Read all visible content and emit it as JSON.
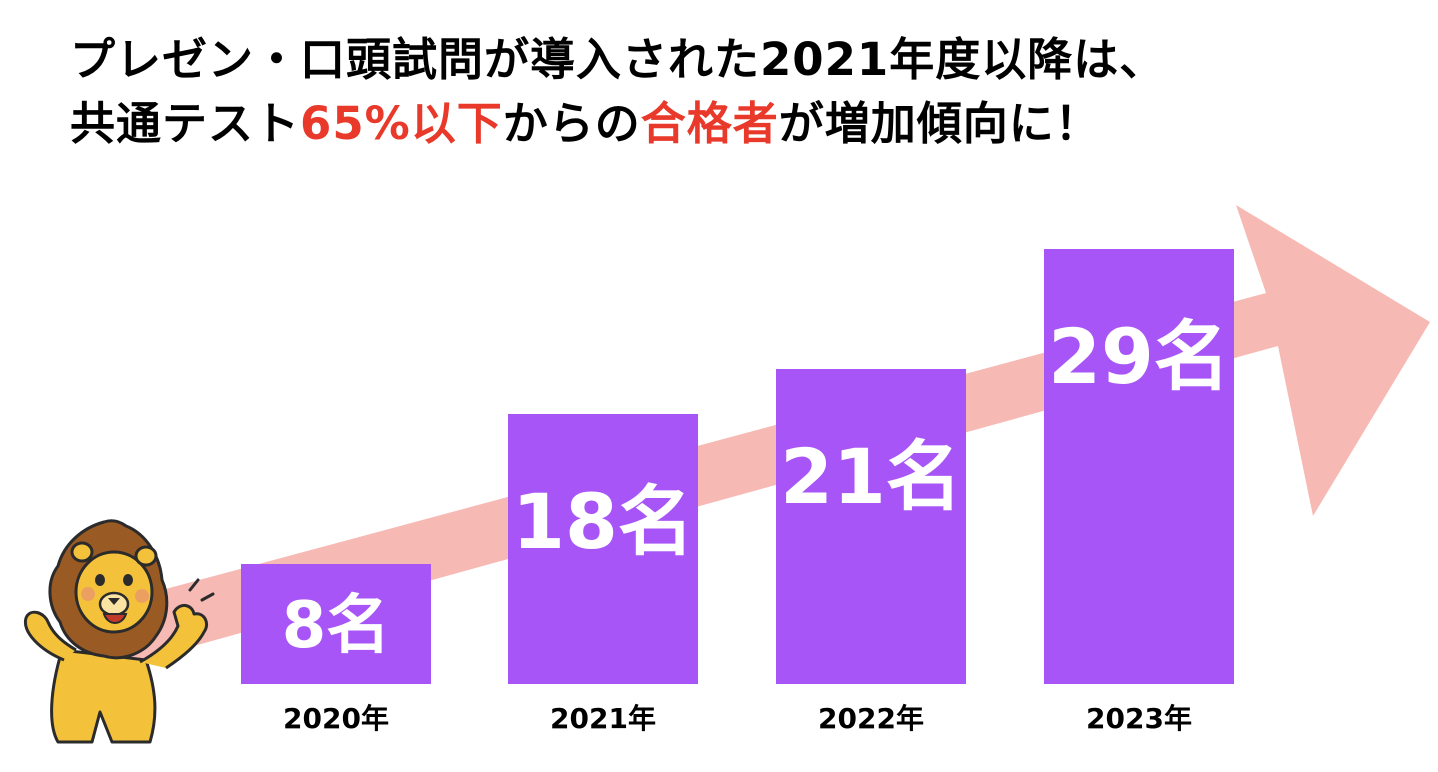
{
  "title": {
    "line1": "プレゼン・口頭試問が導入された2021年度以降は、",
    "line2_part1": "共通テスト",
    "line2_accent1": "65%以下",
    "line2_part2": "からの",
    "line2_accent2": "合格者",
    "line2_part3": "が増加傾向に！"
  },
  "colors": {
    "bar": "#a855f7",
    "arrow": "#f7b9b4",
    "accent": "#e8392b",
    "bar_label": "#ffffff",
    "axis_label": "#000000"
  },
  "chart_data": {
    "type": "bar",
    "title": "プレゼン・口頭試問が導入された2021年度以降は、共通テスト65%以下からの合格者が増加傾向に！",
    "categories": [
      "2020年",
      "2021年",
      "2022年",
      "2023年"
    ],
    "values": [
      8,
      18,
      21,
      29
    ],
    "value_labels": [
      "8名",
      "18名",
      "21名",
      "29名"
    ],
    "unit": "名",
    "xlabel": "",
    "ylabel": "",
    "ylim": [
      0,
      29
    ],
    "grid": false,
    "legend": "none",
    "annotation": "upward-trend-arrow"
  }
}
